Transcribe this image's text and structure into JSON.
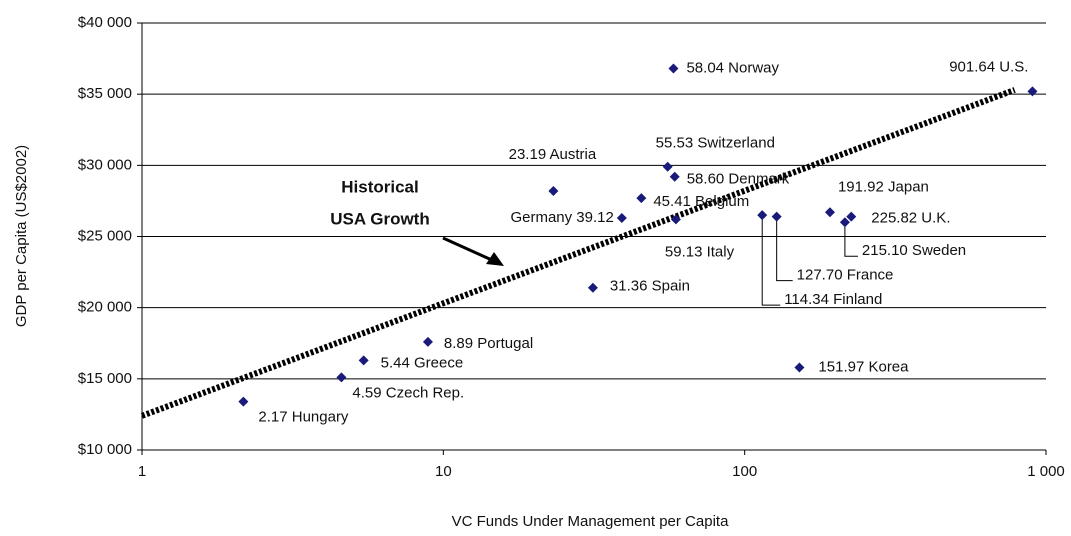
{
  "chart_data": {
    "type": "scatter",
    "xlabel": "VC Funds Under Management per Capita",
    "ylabel": "GDP per Capita (US$2002)",
    "annotation": [
      "Historical",
      "USA Growth"
    ],
    "log_x": true,
    "grid": true,
    "color": "#1a1a7a",
    "xlim": [
      1,
      1000
    ],
    "ylim": [
      10000,
      40000
    ],
    "xticks": [
      1,
      10,
      100,
      {
        "value": 1000,
        "label": "1 000"
      }
    ],
    "yticks": [
      {
        "value": 10000,
        "label": "$10 000"
      },
      {
        "value": 15000,
        "label": "$15 000"
      },
      {
        "value": 20000,
        "label": "$20 000"
      },
      {
        "value": 25000,
        "label": "$25 000"
      },
      {
        "value": 30000,
        "label": "$30 000"
      },
      {
        "value": 35000,
        "label": "$35 000"
      },
      {
        "value": 40000,
        "label": "$40 000"
      }
    ],
    "labels": [
      "58.04 Norway",
      "901.64 U.S.",
      "55.53 Switzerland",
      "58.60 Denmark",
      "23.19 Austria",
      "45.41 Belgium",
      "191.92 Japan",
      "Germany 39.12",
      "59.13 Italy",
      "225.82 U.K.",
      "215.10 Sweden",
      "114.34 Finland",
      "127.70 France",
      "31.36 Spain",
      "8.89 Portugal",
      "5.44 Greece",
      "4.59 Czech Rep.",
      "151.97 Korea",
      "2.17 Hungary"
    ],
    "x": [
      58.04,
      901.64,
      55.53,
      58.6,
      23.19,
      45.41,
      191.92,
      39.12,
      59.13,
      225.82,
      215.1,
      114.34,
      127.7,
      31.36,
      8.89,
      5.44,
      4.59,
      151.97,
      2.17
    ],
    "y": [
      36800,
      35200,
      29900,
      29200,
      28200,
      27700,
      26700,
      26300,
      26200,
      26400,
      26000,
      26500,
      26400,
      21400,
      17600,
      16300,
      15100,
      15800,
      13400
    ],
    "trendline": {
      "x": [
        1,
        787
      ],
      "y": [
        12400,
        35300
      ]
    }
  }
}
